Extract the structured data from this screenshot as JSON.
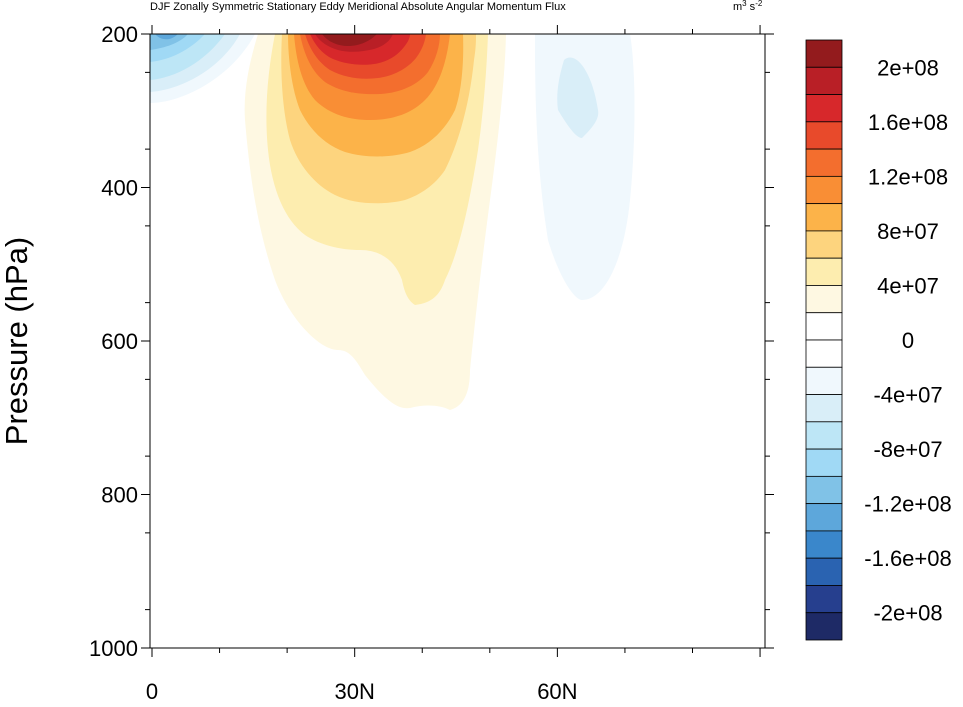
{
  "chart_data": {
    "type": "contour",
    "title": "DJF Zonally Symmetric Stationary Eddy Meridional Absolute Angular Momentum Flux",
    "units": "m³ s⁻²",
    "ylabel": "Pressure (hPa)",
    "xlabel": "",
    "x_ticks": [
      "0",
      "30N",
      "60N"
    ],
    "x_tick_values": [
      0,
      30,
      60
    ],
    "xlim": [
      0,
      90
    ],
    "y_ticks": [
      "200",
      "400",
      "600",
      "800",
      "1000"
    ],
    "y_tick_values": [
      200,
      400,
      600,
      800,
      1000
    ],
    "ylim": [
      1000,
      200
    ],
    "y_axis": "pressure, decreasing upward",
    "colorbar": {
      "labels": [
        "2e+08",
        "1.6e+08",
        "1.2e+08",
        "8e+07",
        "4e+07",
        "0",
        "-4e+07",
        "-8e+07",
        "-1.2e+08",
        "-1.6e+08",
        "-2e+08"
      ],
      "levels": [
        -220000000,
        -200000000,
        -180000000,
        -160000000,
        -140000000,
        -120000000,
        -100000000,
        -80000000,
        -60000000,
        -40000000,
        -20000000,
        0,
        20000000,
        40000000,
        60000000,
        80000000,
        100000000,
        120000000,
        140000000,
        160000000,
        180000000,
        200000000,
        220000000
      ],
      "colors_top_to_bottom": [
        "#931b1d",
        "#b91f26",
        "#d7282b",
        "#e84a2b",
        "#f36e2e",
        "#f98e35",
        "#fcb349",
        "#fdd47e",
        "#fdedaf",
        "#fef8e2",
        "#ffffff",
        "#ffffff",
        "#f0f8fd",
        "#d9eef8",
        "#bde6f6",
        "#a0d9f5",
        "#80c2e7",
        "#5da7db",
        "#3a87cb",
        "#2a63b1",
        "#263f8e",
        "#1e2a66"
      ]
    },
    "features": [
      {
        "label": "positive maximum",
        "lat": 29,
        "p": 200,
        "value": 210000000
      },
      {
        "label": "negative minimum upper-left",
        "lat": 0,
        "p": 200,
        "value": -90000000
      },
      {
        "label": "weak negative lobe",
        "lat": 61,
        "p": 280,
        "value": -25000000
      }
    ]
  }
}
